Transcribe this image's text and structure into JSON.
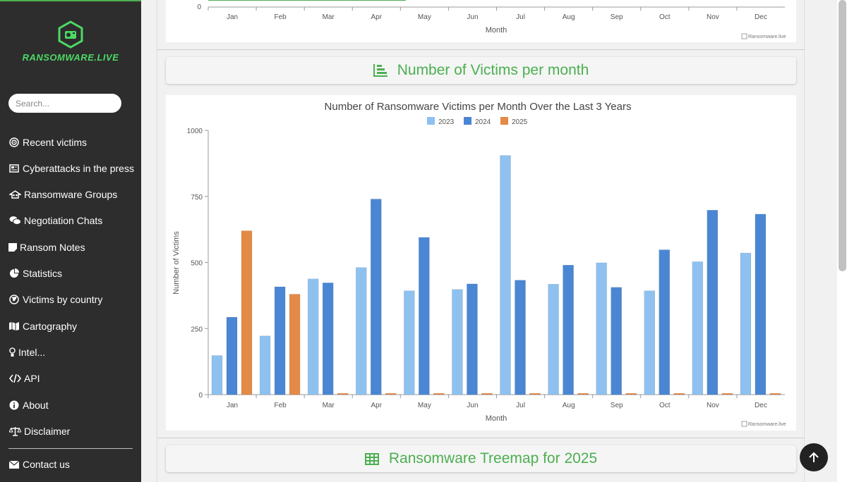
{
  "sidebar": {
    "logo_text": "RANSOMWARE.LIVE",
    "search_placeholder": "Search...",
    "items": [
      {
        "label": "Recent victims",
        "icon": "target-icon"
      },
      {
        "label": "Cyberattacks in the press",
        "icon": "newspaper-icon"
      },
      {
        "label": "Ransomware Groups",
        "icon": "user-secret-icon"
      },
      {
        "label": "Negotiation Chats",
        "icon": "comments-icon"
      },
      {
        "label": "Ransom Notes",
        "icon": "note-icon"
      },
      {
        "label": "Statistics",
        "icon": "pie-chart-icon"
      },
      {
        "label": "Victims by country",
        "icon": "globe-icon"
      },
      {
        "label": "Cartography",
        "icon": "map-icon"
      },
      {
        "label": "Intel...",
        "icon": "lightbulb-icon"
      },
      {
        "label": "API",
        "icon": "code-icon"
      },
      {
        "label": "About",
        "icon": "info-icon"
      },
      {
        "label": "Disclaimer",
        "icon": "scale-icon"
      }
    ],
    "contact": {
      "label": "Contact us",
      "icon": "envelope-icon"
    }
  },
  "top_chart": {
    "months": [
      "Jan",
      "Feb",
      "Mar",
      "Apr",
      "May",
      "Jun",
      "Jul",
      "Aug",
      "Sep",
      "Oct",
      "Nov",
      "Dec"
    ],
    "y_tick": "0",
    "xlabel": "Month",
    "watermark": "Ransomware.live"
  },
  "section_victims": {
    "title": "Number of Victims per month"
  },
  "section_treemap": {
    "title": "Ransomware Treemap for 2025"
  },
  "colors": {
    "c2023": "#8ec1f0",
    "c2024": "#4a86d4",
    "c2025": "#e48a47",
    "accent": "#4caf50"
  },
  "chart_data": {
    "type": "bar",
    "title": "Number of Ransomware Victims per Month Over the Last 3 Years",
    "xlabel": "Month",
    "ylabel": "Number of Victims",
    "ylim": [
      0,
      1000
    ],
    "yticks": [
      "0",
      "250",
      "500",
      "750",
      "1000"
    ],
    "legend_position": "top-center",
    "categories": [
      "Jan",
      "Feb",
      "Mar",
      "Apr",
      "May",
      "Jun",
      "Jul",
      "Aug",
      "Sep",
      "Oct",
      "Nov",
      "Dec"
    ],
    "series": [
      {
        "name": "2023",
        "values": [
          148,
          222,
          438,
          481,
          393,
          398,
          905,
          418,
          499,
          393,
          503,
          536
        ]
      },
      {
        "name": "2024",
        "values": [
          293,
          408,
          423,
          740,
          595,
          419,
          433,
          490,
          406,
          548,
          698,
          683
        ]
      },
      {
        "name": "2025",
        "values": [
          620,
          380,
          5,
          5,
          5,
          5,
          5,
          5,
          5,
          5,
          5,
          5
        ]
      }
    ],
    "watermark": "Ransomware.live"
  }
}
